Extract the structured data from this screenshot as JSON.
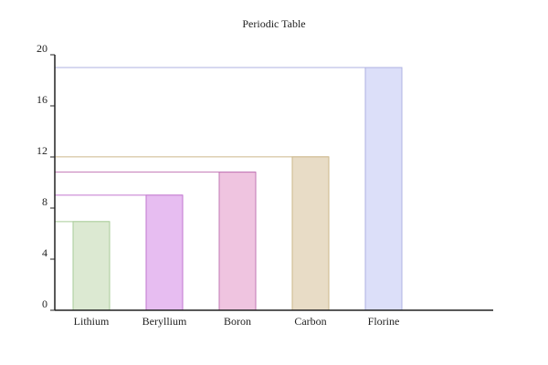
{
  "chart_data": {
    "type": "bar",
    "title": "Periodic Table",
    "xlabel": "",
    "ylabel": "",
    "categories": [
      "Lithium",
      "Beryllium",
      "Boron",
      "Carbon",
      "Florine"
    ],
    "values": [
      6.94,
      9.01,
      10.81,
      12.01,
      19.0
    ],
    "yticks": [
      "0",
      "4",
      "8",
      "12",
      "16",
      "20"
    ],
    "ylim": [
      0,
      20
    ],
    "grid": false,
    "legend": "none",
    "colors": {
      "fills": [
        "#dce9d2",
        "#e7bdf1",
        "#efc4e0",
        "#e8dcc6",
        "#dcdff9"
      ],
      "strokes": [
        "#a9cc99",
        "#c276cf",
        "#c277b5",
        "#ccb78a",
        "#aeb2e2"
      ],
      "axis": "#222222"
    }
  }
}
